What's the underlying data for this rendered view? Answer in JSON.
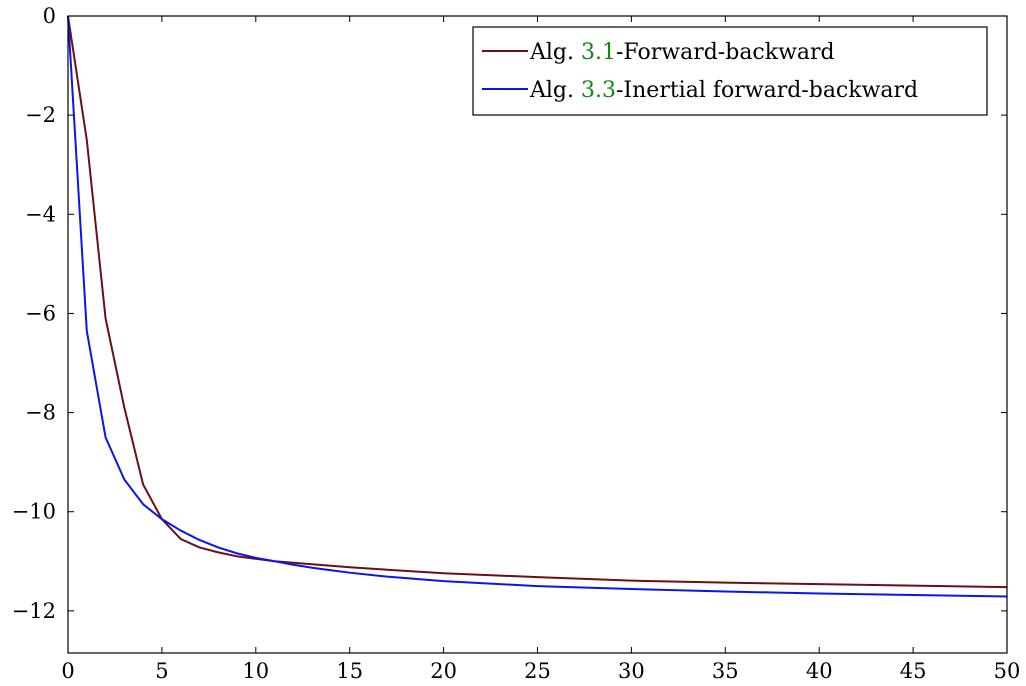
{
  "chart_data": {
    "type": "line",
    "title": "",
    "xlabel": "",
    "ylabel": "",
    "xlim": [
      0,
      50
    ],
    "ylim": [
      -12.85,
      0
    ],
    "xticks": [
      0,
      5,
      10,
      15,
      20,
      25,
      30,
      35,
      40,
      45,
      50
    ],
    "yticks": [
      0,
      -2,
      -4,
      -6,
      -8,
      -10,
      -12
    ],
    "xtick_labels": [
      "0",
      "5",
      "10",
      "15",
      "20",
      "25",
      "30",
      "35",
      "40",
      "45",
      "50"
    ],
    "ytick_labels": [
      "0",
      "−2",
      "−4",
      "−6",
      "−8",
      "−10",
      "−12"
    ],
    "grid": false,
    "legend_position": "top-right",
    "series": [
      {
        "name_prefix": "Alg. ",
        "name_ref": "3.1",
        "name_suffix": "-Forward-backward",
        "color": "#6b0f14",
        "x": [
          0,
          1,
          2,
          3,
          4,
          5,
          6,
          7,
          8,
          9,
          10,
          11,
          12,
          13,
          14,
          15,
          17,
          20,
          25,
          30,
          35,
          40,
          45,
          50
        ],
        "y": [
          0,
          -2.5,
          -6.1,
          -7.9,
          -9.45,
          -10.15,
          -10.55,
          -10.72,
          -10.82,
          -10.9,
          -10.95,
          -11.0,
          -11.03,
          -11.06,
          -11.09,
          -11.12,
          -11.17,
          -11.24,
          -11.32,
          -11.39,
          -11.43,
          -11.46,
          -11.49,
          -11.52
        ]
      },
      {
        "name_prefix": "Alg. ",
        "name_ref": "3.3",
        "name_suffix": "-Inertial forward-backward",
        "color": "#0a14ee",
        "x": [
          0,
          1,
          2,
          3,
          4,
          5,
          6,
          7,
          8,
          9,
          10,
          11,
          12,
          13,
          14,
          15,
          17,
          20,
          25,
          30,
          35,
          40,
          45,
          50
        ],
        "y": [
          0,
          -6.35,
          -8.5,
          -9.35,
          -9.85,
          -10.15,
          -10.38,
          -10.57,
          -10.72,
          -10.84,
          -10.93,
          -11.0,
          -11.07,
          -11.13,
          -11.18,
          -11.23,
          -11.31,
          -11.4,
          -11.5,
          -11.56,
          -11.61,
          -11.65,
          -11.68,
          -11.71
        ]
      }
    ],
    "colors": {
      "axis": "#000000",
      "reference_link": "#118811"
    }
  }
}
